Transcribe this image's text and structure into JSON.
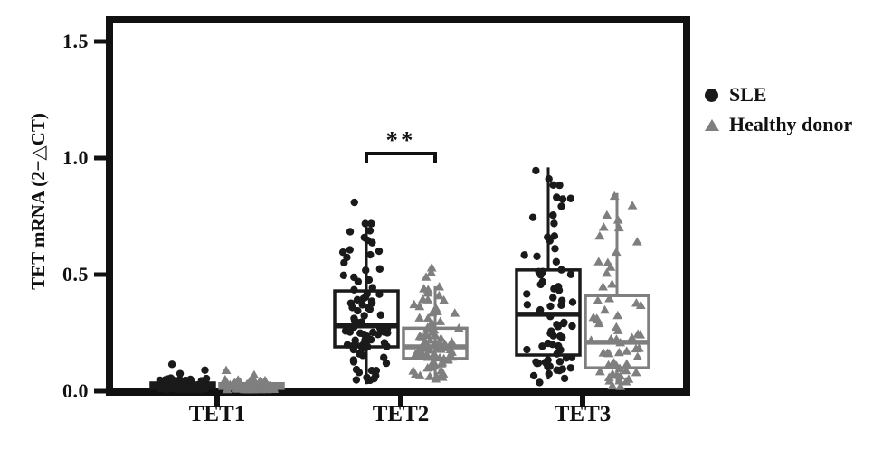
{
  "figure": {
    "background": "#ffffff",
    "frame_color": "#111111"
  },
  "chart_data": {
    "type": "box+scatter",
    "title": "",
    "xlabel": "",
    "ylabel": "TET mRNA (2−△CT)",
    "ylim": [
      0,
      1.6
    ],
    "grid": false,
    "legend_position": "right-outside",
    "categories": [
      "TET1",
      "TET2",
      "TET3"
    ],
    "y_ticks": [
      0.0,
      0.5,
      1.0,
      1.5
    ],
    "y_tick_labels_top_down": [
      "1.5",
      "1.0",
      "0.5",
      "0.0"
    ],
    "series": [
      {
        "name": "SLE",
        "marker": "circle",
        "color": "#1a1a1a",
        "boxes": [
          {
            "category": "TET1",
            "whisker_low": 0.003,
            "q1": 0.012,
            "median": 0.022,
            "q3": 0.035,
            "whisker_high": 0.055,
            "n_points": 78,
            "outliers": [
              0.075,
              0.09,
              0.115
            ]
          },
          {
            "category": "TET2",
            "whisker_low": 0.03,
            "q1": 0.19,
            "median": 0.28,
            "q3": 0.43,
            "whisker_high": 0.72,
            "n_points": 82,
            "outliers": [
              0.81
            ]
          },
          {
            "category": "TET3",
            "whisker_low": 0.05,
            "q1": 0.155,
            "median": 0.33,
            "q3": 0.52,
            "whisker_high": 0.96,
            "n_points": 75,
            "outliers": []
          }
        ]
      },
      {
        "name": "Healthy donor",
        "marker": "triangle",
        "color": "#7f7f7f",
        "boxes": [
          {
            "category": "TET1",
            "whisker_low": 0.003,
            "q1": 0.012,
            "median": 0.02,
            "q3": 0.032,
            "whisker_high": 0.05,
            "n_points": 72,
            "outliers": [
              0.07,
              0.09
            ]
          },
          {
            "category": "TET2",
            "whisker_low": 0.05,
            "q1": 0.14,
            "median": 0.19,
            "q3": 0.27,
            "whisker_high": 0.45,
            "n_points": 80,
            "outliers": [
              0.49,
              0.51,
              0.53
            ]
          },
          {
            "category": "TET3",
            "whisker_low": 0.03,
            "q1": 0.1,
            "median": 0.21,
            "q3": 0.41,
            "whisker_high": 0.85,
            "n_points": 62,
            "outliers": []
          }
        ]
      }
    ],
    "significance": [
      {
        "category": "TET2",
        "between": [
          "SLE",
          "Healthy donor"
        ],
        "label": "**"
      }
    ]
  }
}
